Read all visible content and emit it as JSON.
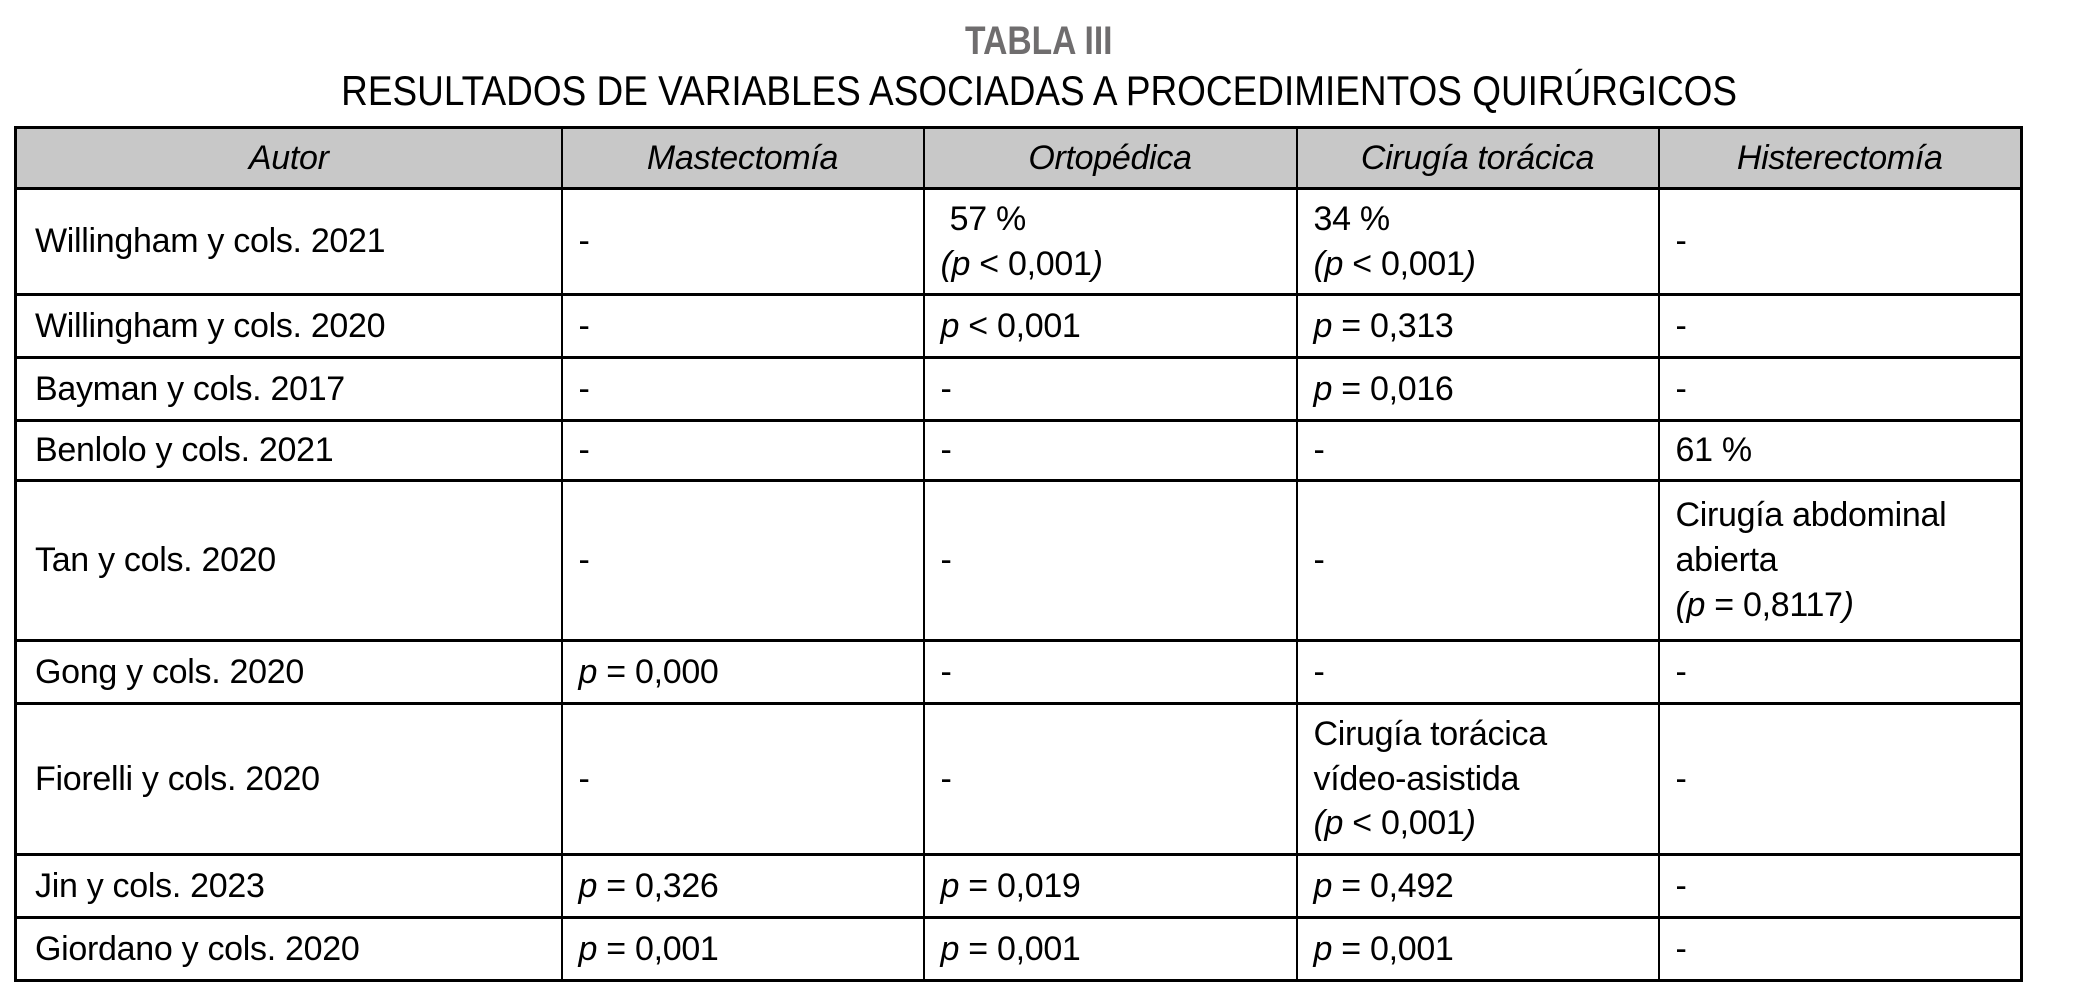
{
  "page": {
    "title": "TABLA III",
    "subtitle": "RESULTADOS DE VARIABLES ASOCIADAS A PROCEDIMIENTOS QUIRÚRGICOS"
  },
  "colors": {
    "page_bg": "#ffffff",
    "title_gray": "#6f6d6e",
    "header_bg": "#c8c8c8",
    "border": "#000000",
    "text": "#000000"
  },
  "table": {
    "columns": [
      "Autor",
      "Mastectomía",
      "Ortopédica",
      "Cirugía torácica",
      "Histerectomía"
    ],
    "rows": [
      {
        "author": "Willingham y cols. 2021",
        "cells": [
          "-",
          " 57 %\n(p < 0,001)",
          "34 %\n(p < 0,001)",
          "-"
        ]
      },
      {
        "author": "Willingham y cols. 2020",
        "cells": [
          "-",
          "p < 0,001",
          "p = 0,313",
          "-"
        ]
      },
      {
        "author": "Bayman y cols. 2017",
        "cells": [
          "-",
          "-",
          "p = 0,016",
          "-"
        ]
      },
      {
        "author": "Benlolo y cols. 2021",
        "cells": [
          "-",
          "-",
          "-",
          "61 %"
        ]
      },
      {
        "author": "Tan y cols. 2020",
        "cells": [
          "-",
          "-",
          "-",
          "Cirugía abdominal\nabierta\n(p = 0,8117)"
        ]
      },
      {
        "author": "Gong y cols. 2020",
        "cells": [
          "p = 0,000",
          "-",
          "-",
          "-"
        ]
      },
      {
        "author": "Fiorelli y cols. 2020",
        "cells": [
          "-",
          "-",
          "Cirugía torácica\nvídeo-asistida\n(p < 0,001)",
          "-"
        ]
      },
      {
        "author": "Jin y cols. 2023",
        "cells": [
          "p = 0,326",
          "p = 0,019",
          "p = 0,492",
          "-"
        ]
      },
      {
        "author": "Giordano y cols. 2020",
        "cells": [
          "p = 0,001",
          "p = 0,001",
          "p = 0,001",
          "-"
        ]
      }
    ]
  }
}
